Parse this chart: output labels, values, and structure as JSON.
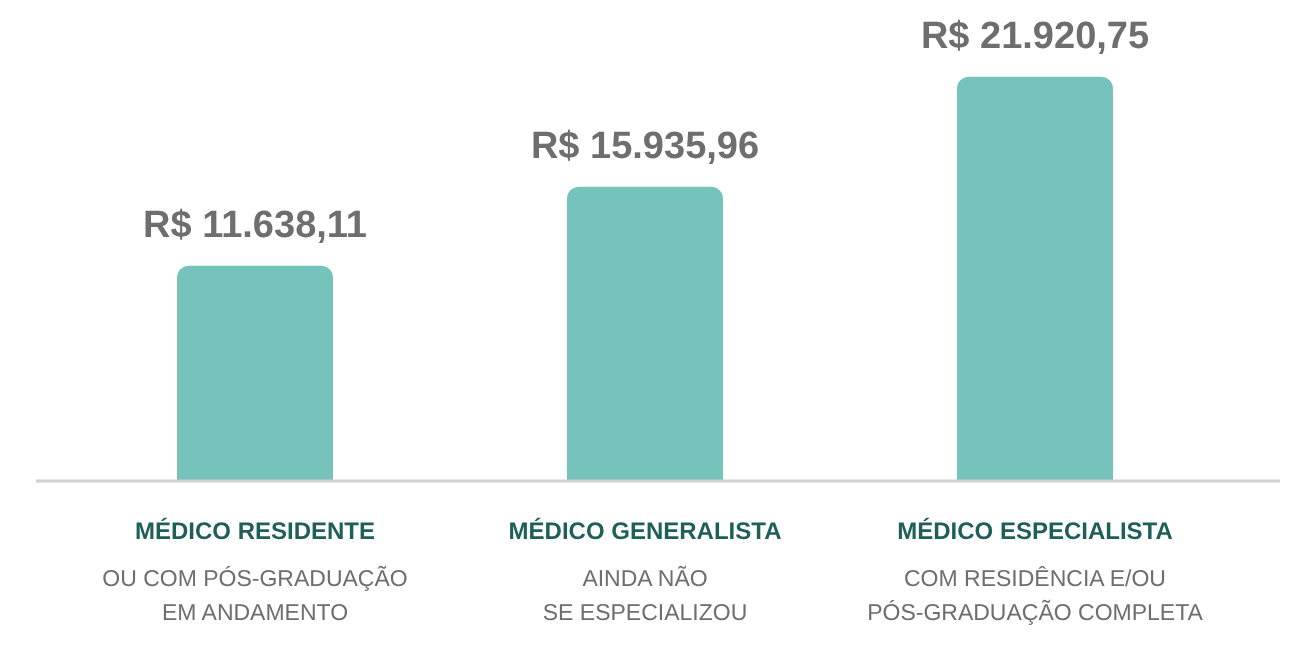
{
  "chart_data": {
    "type": "bar",
    "categories": [
      "MÉDICO RESIDENTE",
      "MÉDICO GENERALISTA",
      "MÉDICO ESPECIALISTA"
    ],
    "values": [
      11638.11,
      15935.96,
      21920.75
    ],
    "value_labels": [
      "R$ 11.638,11",
      "R$ 15.935,96",
      "R$ 21.920,75"
    ],
    "color": "#76c3bb",
    "annotations": [
      "OU COM PÓS-GRADUAÇÃO\nEM ANDAMENTO",
      "AINDA NÃO\nSE ESPECIALIZOU",
      "COM RESIDÊNCIA E/OU\nPÓS-GRADUAÇÃO COMPLETA"
    ]
  }
}
